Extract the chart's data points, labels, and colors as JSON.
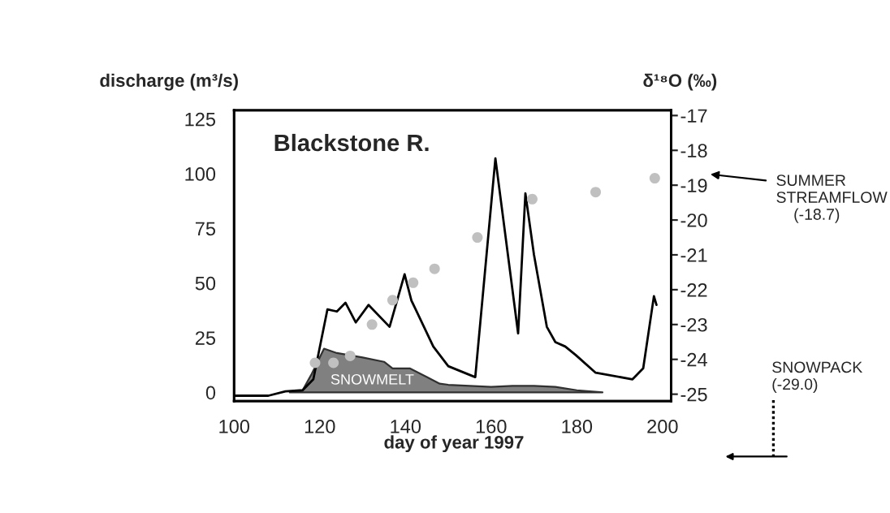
{
  "chart_data": {
    "type": "line",
    "title": "Blackstone R.",
    "xlabel": "day of year 1997",
    "ylabel": "discharge (m³/s)",
    "y2label": "δ¹⁸O (‰)",
    "annotations": [
      "SUMMER\nSTREAMFLOW\n    (-18.7)",
      "SNOWPACK\n(-29.0)"
    ],
    "series": [
      {
        "type": "area",
        "name": "SNOWMELT",
        "color": "#808080",
        "x": [
          113,
          116,
          118,
          121,
          124,
          127,
          130,
          135,
          137,
          141,
          145,
          148,
          150,
          155,
          160,
          165,
          170,
          175,
          180,
          186
        ],
        "values": [
          0,
          1,
          8,
          20,
          18,
          17,
          16,
          14,
          11,
          11,
          7,
          4,
          3.5,
          3,
          2.5,
          3,
          3,
          2.5,
          1,
          0
        ]
      },
      {
        "color": "#000000",
        "x": [
          100,
          108,
          112,
          116,
          118.5,
          121.8,
          124,
          126,
          128.4,
          131.4,
          136.3,
          139.8,
          141.4,
          146.5,
          150,
          155,
          156.3,
          161,
          166.3,
          168,
          170,
          173,
          175,
          177.3,
          179.8,
          184.4,
          193,
          195.5,
          198,
          198.6
        ],
        "values": [
          -1.5,
          -1.5,
          0.5,
          1,
          6,
          38,
          37,
          41,
          32,
          40,
          30,
          54,
          42,
          21,
          12,
          8,
          7,
          107,
          27,
          91,
          63,
          30,
          23,
          21,
          17,
          9,
          6,
          11,
          44,
          40
        ]
      },
      {
        "type": "scatter",
        "axis": "y2",
        "marker": "circle",
        "color": "#c0c0c0",
        "x": [
          118.9,
          123.2,
          127.1,
          132.2,
          137,
          141.8,
          146.8,
          156.8,
          169.6,
          184.4,
          198.2
        ],
        "values": [
          -24.1,
          -24.1,
          -23.9,
          -23.0,
          -22.3,
          -21.8,
          -21.4,
          -20.5,
          -19.4,
          -19.2,
          -18.8
        ]
      }
    ],
    "xlim": [
      100,
      202
    ],
    "xticks": [
      100,
      120,
      140,
      160,
      180,
      200
    ],
    "ylim": [
      -4,
      129
    ],
    "yticks": [
      0,
      25,
      50,
      75,
      100,
      125
    ],
    "y2lim": [
      -25.2,
      -16.85
    ],
    "y2ticks": [
      -17,
      -18,
      -19,
      -20,
      -21,
      -22,
      -23,
      -24,
      -25
    ],
    "grid": false,
    "legend": false
  }
}
